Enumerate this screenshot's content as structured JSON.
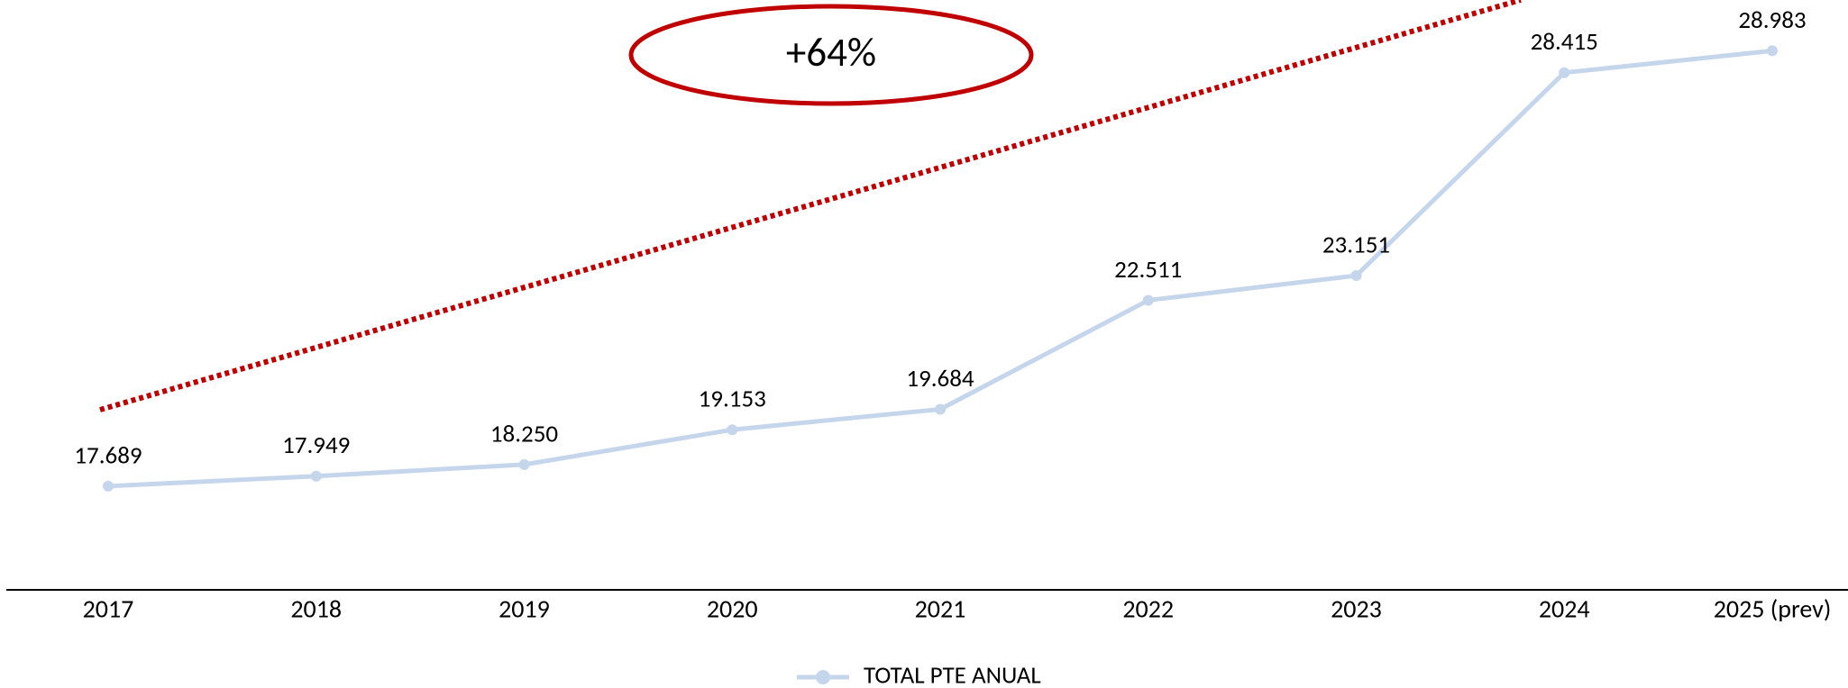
{
  "chart_data": {
    "type": "line",
    "annotation": "+64%",
    "categories": [
      "2017",
      "2018",
      "2019",
      "2020",
      "2021",
      "2022",
      "2023",
      "2024",
      "2025 (prev)"
    ],
    "series": [
      {
        "name": "TOTAL PTE ANUAL",
        "color": "#c5d6ec",
        "values": [
          17689,
          17949,
          18250,
          19153,
          19684,
          22511,
          23151,
          28415,
          28983
        ],
        "value_labels": [
          "17.689",
          "17.949",
          "18.250",
          "19.153",
          "19.684",
          "22.511",
          "23.151",
          "28.415",
          "28.983"
        ]
      }
    ],
    "ylim": [
      15000,
      30300
    ],
    "annotation_color": "#c00000",
    "legend": "bottom"
  }
}
